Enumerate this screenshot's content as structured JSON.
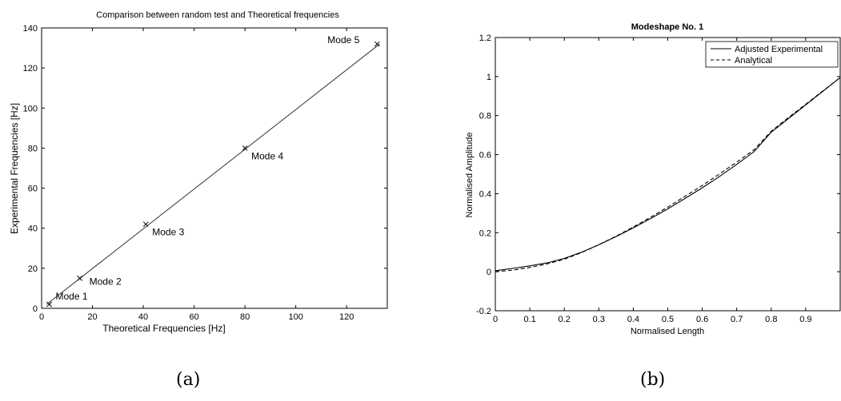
{
  "chart_data": [
    {
      "type": "scatter",
      "panel_label": "(a)",
      "title": "Comparison between random test and Theoretical frequencies",
      "xlabel": "Theoretical Frequencies [Hz]",
      "ylabel": "Experimental Frequencies [Hz]",
      "xlim": [
        0,
        136
      ],
      "ylim": [
        0,
        140
      ],
      "xticks": [
        0,
        20,
        40,
        60,
        80,
        100,
        120
      ],
      "yticks": [
        0,
        20,
        40,
        60,
        80,
        100,
        120,
        140
      ],
      "grid": false,
      "fit_line": {
        "x": [
          2,
          133
        ],
        "y": [
          2,
          132
        ]
      },
      "series": [
        {
          "points": [
            {
              "x": 3,
              "y": 2,
              "label": "Mode 1"
            },
            {
              "x": 15,
              "y": 15,
              "label": "Mode 2"
            },
            {
              "x": 41,
              "y": 42,
              "label": "Mode 3"
            },
            {
              "x": 80,
              "y": 80,
              "label": "Mode 4"
            },
            {
              "x": 132,
              "y": 132,
              "label": "Mode 5"
            }
          ]
        }
      ]
    },
    {
      "type": "line",
      "panel_label": "(b)",
      "title": "Modeshape No. 1",
      "xlabel": "Normalised Length",
      "ylabel": "Normalised Amplitude",
      "xlim": [
        0,
        1
      ],
      "ylim": [
        -0.2,
        1.2
      ],
      "xticks": [
        0,
        0.1,
        0.2,
        0.3,
        0.4,
        0.5,
        0.6,
        0.7,
        0.8,
        0.9
      ],
      "yticks": [
        -0.2,
        0,
        0.2,
        0.4,
        0.6,
        0.8,
        1,
        1.2
      ],
      "grid": false,
      "legend_position": "top-right",
      "series": [
        {
          "name": "Adjusted Experimental",
          "style": "solid",
          "x": [
            0,
            0.05,
            0.1,
            0.15,
            0.2,
            0.25,
            0.3,
            0.35,
            0.4,
            0.45,
            0.5,
            0.55,
            0.6,
            0.65,
            0.7,
            0.75,
            0.8,
            0.85,
            0.9,
            0.95,
            1.0
          ],
          "y": [
            0.005,
            0.017,
            0.03,
            0.045,
            0.068,
            0.1,
            0.138,
            0.18,
            0.225,
            0.272,
            0.322,
            0.375,
            0.43,
            0.488,
            0.55,
            0.615,
            0.715,
            0.785,
            0.855,
            0.925,
            0.995
          ]
        },
        {
          "name": "Analytical",
          "style": "dashed",
          "x": [
            0,
            0.05,
            0.1,
            0.15,
            0.2,
            0.25,
            0.3,
            0.35,
            0.4,
            0.45,
            0.5,
            0.55,
            0.6,
            0.65,
            0.7,
            0.75,
            0.8,
            0.85,
            0.9,
            0.95,
            1.0
          ],
          "y": [
            0,
            0.008,
            0.022,
            0.04,
            0.064,
            0.098,
            0.138,
            0.182,
            0.229,
            0.279,
            0.331,
            0.386,
            0.442,
            0.501,
            0.562,
            0.625,
            0.72,
            0.79,
            0.858,
            0.927,
            0.995
          ]
        }
      ]
    }
  ]
}
